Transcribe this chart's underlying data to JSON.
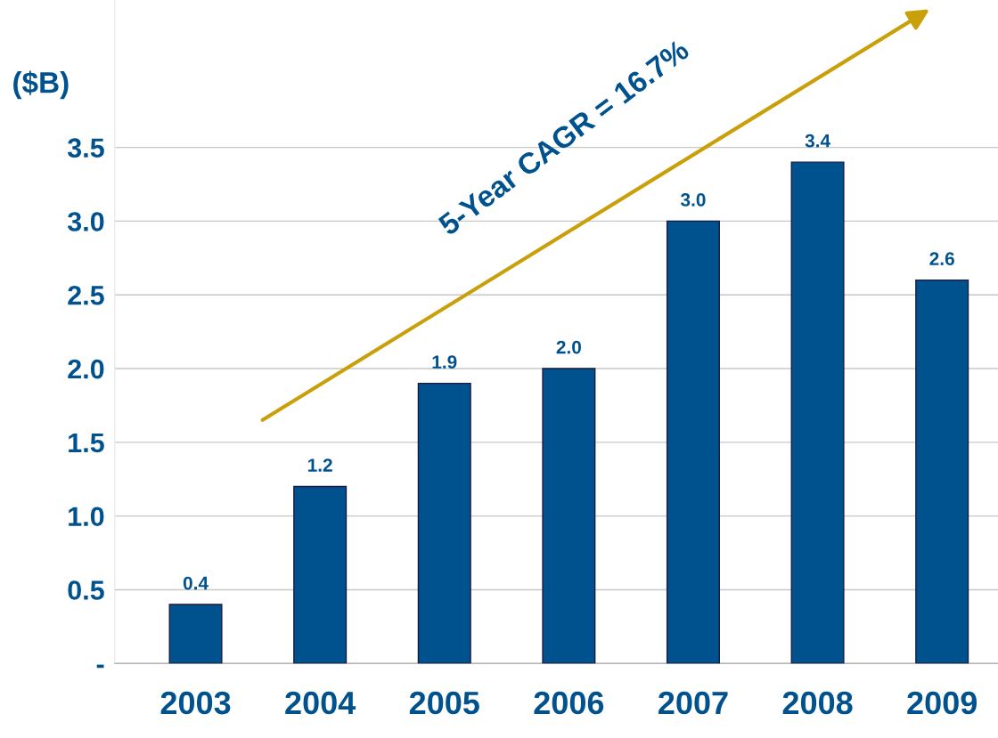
{
  "chart_data": {
    "type": "bar",
    "ylabel": "($B)",
    "categories": [
      "2003",
      "2004",
      "2005",
      "2006",
      "2007",
      "2008",
      "2009"
    ],
    "values": [
      0.4,
      1.2,
      1.9,
      2.0,
      3.0,
      3.4,
      2.6
    ],
    "color": "#00528f",
    "ylim": [
      0,
      4.5
    ],
    "yticks": [
      {
        "value": 0,
        "label": "-"
      },
      {
        "value": 0.5,
        "label": "0.5"
      },
      {
        "value": 1.0,
        "label": "1.0"
      },
      {
        "value": 1.5,
        "label": "1.5"
      },
      {
        "value": 2.0,
        "label": "2.0"
      },
      {
        "value": 2.5,
        "label": "2.5"
      },
      {
        "value": 3.0,
        "label": "3.0"
      },
      {
        "value": 3.5,
        "label": "3.5"
      }
    ],
    "value_labels": [
      "0.4",
      "1.2",
      "1.9",
      "2.0",
      "3.0",
      "3.4",
      "2.6"
    ],
    "grid": "y",
    "annotations": [
      "5-Year CAGR = 16.7%"
    ]
  }
}
